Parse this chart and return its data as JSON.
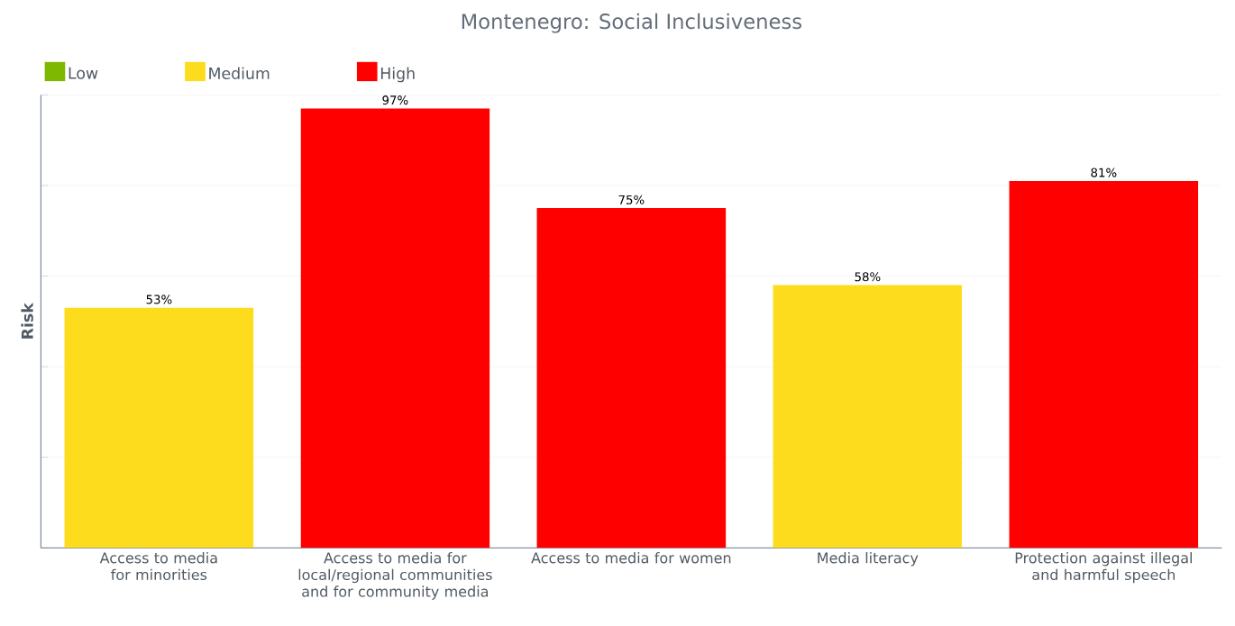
{
  "chart_data": {
    "type": "bar",
    "title": "Montenegro: Social Inclusiveness",
    "ylabel": "Risk",
    "categories": [
      "Access to media for minorities",
      "Access to media for local/regional communities and for community media",
      "Access to media for women",
      "Media literacy",
      "Protection against illegal and harmful speech"
    ],
    "series": [
      {
        "name": "Low",
        "color": "#7fb800",
        "values": [
          null,
          null,
          null,
          null,
          null
        ]
      },
      {
        "name": "Medium",
        "color": "#fcdc1c",
        "values": [
          53,
          null,
          null,
          58,
          null
        ],
        "value_labels": [
          "53%",
          null,
          null,
          "58%",
          null
        ]
      },
      {
        "name": "High",
        "color": "#ff0000",
        "values": [
          null,
          97,
          75,
          null,
          81
        ],
        "value_labels": [
          null,
          "97%",
          "75%",
          null,
          "81%"
        ]
      }
    ],
    "ylim": [
      0,
      100
    ],
    "yticks": [
      {
        "value": 0,
        "label": null
      },
      {
        "value": 20,
        "label": null
      },
      {
        "value": 40,
        "label": null
      },
      {
        "value": 60,
        "label": null
      },
      {
        "value": 80,
        "label": null
      },
      {
        "value": 100,
        "label": null
      }
    ],
    "grid": "y",
    "legend": "top left"
  }
}
